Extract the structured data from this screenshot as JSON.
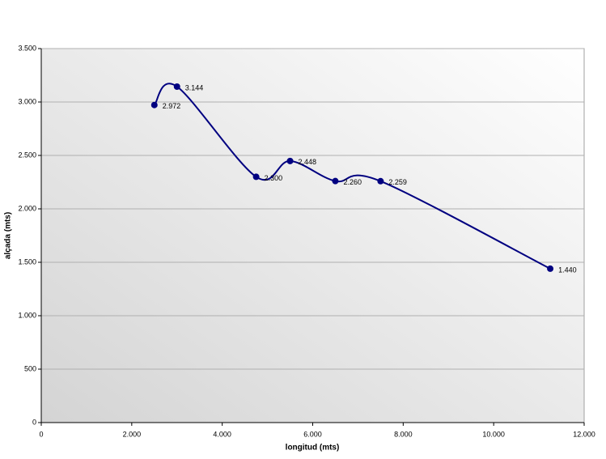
{
  "chart_data": {
    "type": "scatter",
    "x_label": "longitud (mts)",
    "y_label": "alçada (mts)",
    "x": [
      2500,
      3000,
      4750,
      5500,
      6500,
      7500,
      11250
    ],
    "series": [
      {
        "name": "alçada",
        "color": "#000080",
        "values": [
          2972,
          3144,
          2300,
          2448,
          2260,
          2259,
          1440
        ],
        "value_labels": [
          "2.972",
          "3.144",
          "2.300",
          "2.448",
          "2.260",
          "2.259",
          "1.440"
        ]
      }
    ],
    "smooth": true,
    "xlim": [
      0,
      12000
    ],
    "xticks": [
      0,
      {
        "value": 2000,
        "label": "2.000"
      },
      {
        "value": 4000,
        "label": "4.000"
      },
      {
        "value": 6000,
        "label": "6.000"
      },
      {
        "value": 8000,
        "label": "8.000"
      },
      {
        "value": 10000,
        "label": "10.000"
      },
      {
        "value": 12000,
        "label": "12.000"
      }
    ],
    "ylim": [
      0,
      3500
    ],
    "yticks": [
      0,
      {
        "value": 500,
        "label": "500"
      },
      {
        "value": 1000,
        "label": "1.000"
      },
      {
        "value": 1500,
        "label": "1.500"
      },
      {
        "value": 2000,
        "label": "2.000"
      },
      {
        "value": 2500,
        "label": "2.500"
      },
      {
        "value": 3000,
        "label": "3.000"
      },
      {
        "value": 3500,
        "label": "3.500"
      }
    ],
    "grid": true
  }
}
